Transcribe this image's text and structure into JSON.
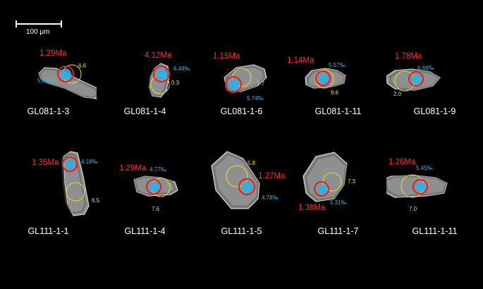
{
  "scale_bar": {
    "label": "100 μm"
  },
  "colors": {
    "age": "#ff2a2a",
    "hf_isotope": "#3bb7ea",
    "ti_spot": "#e6df2a",
    "spot_ring": "#e41b23",
    "background": "#000000"
  },
  "grains": [
    {
      "sample": "GL081-1-3",
      "age": "1.29Ma",
      "hf": "5.88‰",
      "ti": "6.6"
    },
    {
      "sample": "GL081-1-4",
      "age": "4.12Ma",
      "hf": "6.49‰",
      "ti": "0.3"
    },
    {
      "sample": "GL081-1-6",
      "age": "1.15Ma",
      "hf": "5.74‰",
      "ti": "7.7"
    },
    {
      "sample": "GL081-1-11",
      "age": "1.14Ma",
      "hf": "5.57‰",
      "ti": "9.6"
    },
    {
      "sample": "GL081-1-9",
      "age": "1.78Ma",
      "hf": "6.66‰",
      "ti": "2.0"
    },
    {
      "sample": "GL111-1-1",
      "age": "1.35Ma",
      "hf": "4.18‰",
      "ti": "6.5"
    },
    {
      "sample": "GL111-1-4",
      "age": "1.29Ma",
      "hf": "4.77‰",
      "ti": "7.6"
    },
    {
      "sample": "GL111-1-5",
      "age": "1.27Ma",
      "hf": "4.78‰",
      "ti": "5.8"
    },
    {
      "sample": "GL111-1-7",
      "age": "1.38Ma",
      "hf": "5.31‰",
      "ti": "7.3"
    },
    {
      "sample": "GL111-1-11",
      "age": "1.26Ma",
      "hf": "5.45‰",
      "ti": "7.0"
    }
  ]
}
